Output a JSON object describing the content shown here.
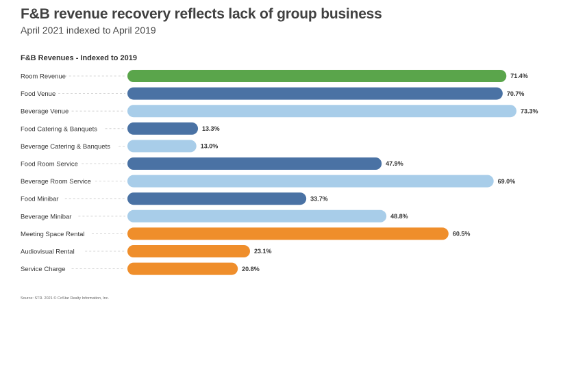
{
  "header": {
    "title": "F&B revenue recovery reflects lack of group business",
    "subtitle": "April 2021 indexed to April 2019"
  },
  "footer": {
    "source": "Source: STR. 2021 © CoStar Realty Information, Inc."
  },
  "colors": {
    "room": "#5aa54b",
    "food": "#4a72a4",
    "beverage": "#a8cde9",
    "other": "#ef8e2b"
  },
  "chart_data": {
    "type": "bar",
    "orientation": "horizontal",
    "title": "F&B Revenues - Indexed to 2019",
    "categories": [
      "Room Revenue",
      "Food Venue",
      "Beverage Venue",
      "Food Catering & Banquets",
      "Beverage Catering & Banquets",
      "Food Room Service",
      "Beverage Room Service",
      "Food Minibar",
      "Beverage Minibar",
      "Meeting Space Rental",
      "Audiovisual Rental",
      "Service Charge"
    ],
    "values": [
      71.4,
      70.7,
      73.3,
      13.3,
      13.0,
      47.9,
      69.0,
      33.7,
      48.8,
      60.5,
      23.1,
      20.8
    ],
    "value_labels": [
      "71.4%",
      "70.7%",
      "73.3%",
      "13.3%",
      "13.0%",
      "47.9%",
      "69.0%",
      "33.7%",
      "48.8%",
      "60.5%",
      "23.1%",
      "20.8%"
    ],
    "bar_colors": [
      "#5aa54b",
      "#4a72a4",
      "#a8cde9",
      "#4a72a4",
      "#a8cde9",
      "#4a72a4",
      "#a8cde9",
      "#4a72a4",
      "#a8cde9",
      "#ef8e2b",
      "#ef8e2b",
      "#ef8e2b"
    ],
    "xlim": [
      0,
      73.3
    ],
    "grid": false,
    "legend": "none"
  }
}
